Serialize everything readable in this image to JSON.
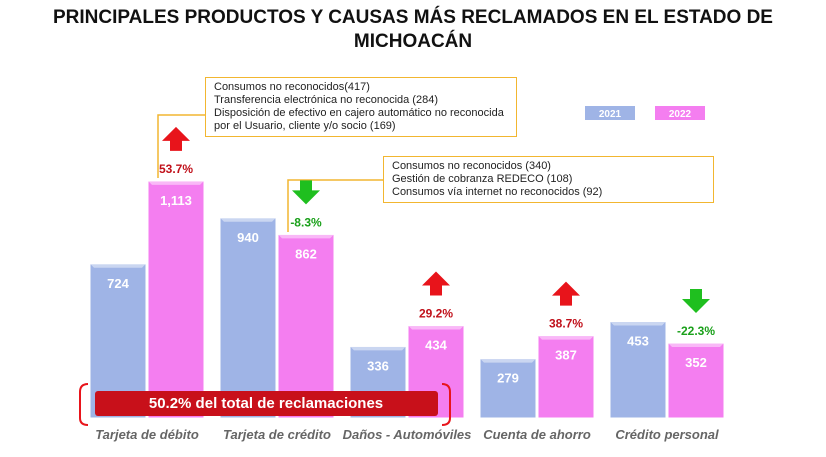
{
  "chart_data": {
    "type": "bar",
    "title": "PRINCIPALES PRODUCTOS Y CAUSAS MÁS RECLAMADOS EN EL ESTADO DE MICHOACÁN",
    "categories": [
      "Tarjeta de débito",
      "Tarjeta de crédito",
      "Daños - Automóviles",
      "Cuenta de ahorro",
      "Crédito personal"
    ],
    "series": [
      {
        "name": "2021",
        "color": "#9fb4e6",
        "values": [
          724,
          940,
          336,
          279,
          453
        ]
      },
      {
        "name": "2022",
        "color": "#f47ef0",
        "values": [
          1113,
          862,
          434,
          387,
          352
        ],
        "value_labels": [
          "1,113",
          "862",
          "434",
          "387",
          "352"
        ]
      }
    ],
    "changes": [
      53.7,
      -8.3,
      29.2,
      38.7,
      -22.3
    ],
    "change_labels": [
      "53.7%",
      "-8.3%",
      "29.2%",
      "38.7%",
      "-22.3%"
    ],
    "callouts": [
      {
        "lines": [
          "Consumos no reconocidos(417)",
          "Transferencia electrónica no reconocida (284)",
          "Disposición de efectivo en cajero automático no reconocida por el Usuario, cliente y/o socio (169)"
        ]
      },
      {
        "lines": [
          "Consumos no reconocidos (340)",
          "Gestión de cobranza REDECO (108)",
          "Consumos vía internet no reconocidos (92)"
        ]
      }
    ],
    "highlight": "50.2% del total de reclamaciones"
  }
}
